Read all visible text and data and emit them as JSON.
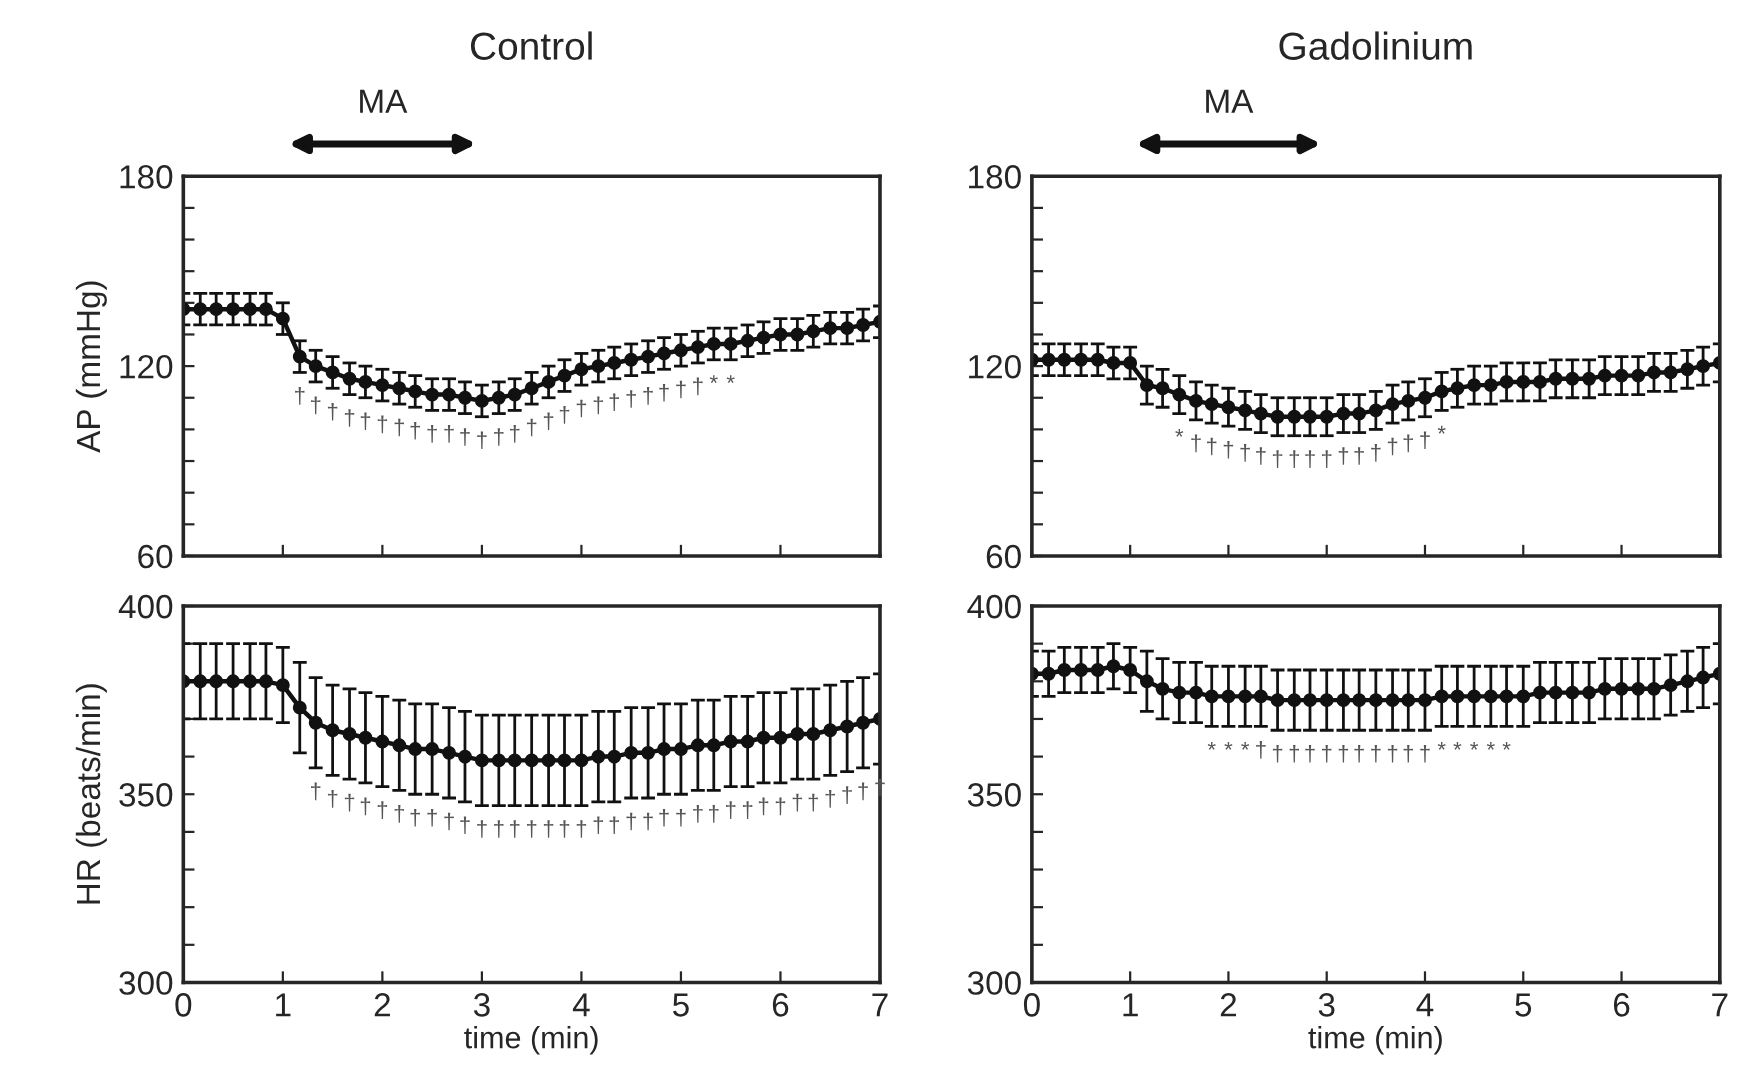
{
  "chart_data": [
    {
      "type": "line",
      "title": "Control",
      "ylabel": "AP (mmHg)",
      "tick_labels": "y",
      "marker": "circle",
      "grid": false,
      "x": [
        0,
        0.17,
        0.33,
        0.5,
        0.67,
        0.83,
        1,
        1.17,
        1.33,
        1.5,
        1.67,
        1.83,
        2,
        2.17,
        2.33,
        2.5,
        2.67,
        2.83,
        3,
        3.17,
        3.33,
        3.5,
        3.67,
        3.83,
        4,
        4.17,
        4.33,
        4.5,
        4.67,
        4.83,
        5,
        5.17,
        5.33,
        5.5,
        5.67,
        5.83,
        6,
        6.17,
        6.33,
        6.5,
        6.67,
        6.83,
        7
      ],
      "series": [
        {
          "color": "#111111",
          "values": [
            138,
            138,
            138,
            138,
            138,
            138,
            135,
            123,
            120,
            118,
            116,
            115,
            114,
            113,
            112,
            111,
            111,
            110,
            109,
            110,
            111,
            113,
            115,
            117,
            119,
            120,
            121,
            122,
            123,
            124,
            125,
            126,
            127,
            127,
            128,
            129,
            130,
            130,
            131,
            132,
            132,
            133,
            134
          ],
          "errors": [
            5,
            5,
            5,
            5,
            5,
            5,
            5,
            5,
            5,
            5,
            5,
            5,
            5,
            5,
            5,
            5,
            5,
            5,
            5,
            5,
            5,
            5,
            5,
            5,
            5,
            5,
            5,
            5,
            5,
            5,
            5,
            5,
            5,
            5,
            5,
            5,
            5,
            5,
            5,
            5,
            5,
            5,
            5
          ]
        }
      ],
      "xlim": [
        0,
        7
      ],
      "xticks": [
        0,
        1,
        2,
        3,
        4,
        5,
        6,
        7
      ],
      "ylim": [
        60,
        180
      ],
      "yticks": [
        60,
        {
          "value": 70,
          "label": null
        },
        {
          "value": 80,
          "label": null
        },
        {
          "value": 90,
          "label": null
        },
        {
          "value": 100,
          "label": null
        },
        {
          "value": 110,
          "label": null
        },
        120,
        {
          "value": 130,
          "label": null
        },
        {
          "value": 140,
          "label": null
        },
        {
          "value": 150,
          "label": null
        },
        {
          "value": 160,
          "label": null
        },
        {
          "value": 170,
          "label": null
        },
        180
      ],
      "annotations": [
        "MA",
        {
          "text": "†",
          "x": 1.17,
          "y": 123
        },
        {
          "text": "†",
          "x": 1.33,
          "y": 120
        },
        {
          "text": "†",
          "x": 1.5,
          "y": 118
        },
        {
          "text": "†",
          "x": 1.67,
          "y": 116
        },
        {
          "text": "†",
          "x": 1.83,
          "y": 115
        },
        {
          "text": "†",
          "x": 2,
          "y": 114
        },
        {
          "text": "†",
          "x": 2.17,
          "y": 113
        },
        {
          "text": "†",
          "x": 2.33,
          "y": 112
        },
        {
          "text": "†",
          "x": 2.5,
          "y": 111
        },
        {
          "text": "†",
          "x": 2.67,
          "y": 111
        },
        {
          "text": "†",
          "x": 2.83,
          "y": 110
        },
        {
          "text": "†",
          "x": 3,
          "y": 109
        },
        {
          "text": "†",
          "x": 3.17,
          "y": 110
        },
        {
          "text": "†",
          "x": 3.33,
          "y": 111
        },
        {
          "text": "†",
          "x": 3.5,
          "y": 113
        },
        {
          "text": "†",
          "x": 3.67,
          "y": 115
        },
        {
          "text": "†",
          "x": 3.83,
          "y": 117
        },
        {
          "text": "†",
          "x": 4,
          "y": 119
        },
        {
          "text": "†",
          "x": 4.17,
          "y": 120
        },
        {
          "text": "†",
          "x": 4.33,
          "y": 121
        },
        {
          "text": "†",
          "x": 4.5,
          "y": 122
        },
        {
          "text": "†",
          "x": 4.67,
          "y": 123
        },
        {
          "text": "†",
          "x": 4.83,
          "y": 124
        },
        {
          "text": "†",
          "x": 5,
          "y": 125
        },
        {
          "text": "†",
          "x": 5.17,
          "y": 126
        },
        {
          "text": "*",
          "x": 5.33,
          "y": 127
        },
        {
          "text": "*",
          "x": 5.5,
          "y": 127
        }
      ]
    },
    {
      "type": "line",
      "title": "Gadolinium",
      "tick_labels": "y",
      "marker": "circle",
      "grid": false,
      "x": [
        0,
        0.17,
        0.33,
        0.5,
        0.67,
        0.83,
        1,
        1.17,
        1.33,
        1.5,
        1.67,
        1.83,
        2,
        2.17,
        2.33,
        2.5,
        2.67,
        2.83,
        3,
        3.17,
        3.33,
        3.5,
        3.67,
        3.83,
        4,
        4.17,
        4.33,
        4.5,
        4.67,
        4.83,
        5,
        5.17,
        5.33,
        5.5,
        5.67,
        5.83,
        6,
        6.17,
        6.33,
        6.5,
        6.67,
        6.83,
        7
      ],
      "series": [
        {
          "color": "#111111",
          "values": [
            122,
            122,
            122,
            122,
            122,
            121,
            121,
            114,
            113,
            111,
            109,
            108,
            107,
            106,
            105,
            104,
            104,
            104,
            104,
            105,
            105,
            106,
            108,
            109,
            110,
            112,
            113,
            114,
            114,
            115,
            115,
            115,
            116,
            116,
            116,
            117,
            117,
            117,
            118,
            118,
            119,
            120,
            121
          ],
          "errors": [
            5,
            5,
            5,
            5,
            5,
            5,
            5,
            6,
            6,
            6,
            6,
            6,
            6,
            6,
            6,
            6,
            6,
            6,
            6,
            6,
            6,
            6,
            6,
            6,
            6,
            6,
            6,
            6,
            6,
            6,
            6,
            6,
            6,
            6,
            6,
            6,
            6,
            6,
            6,
            6,
            6,
            6,
            6
          ]
        }
      ],
      "xlim": [
        0,
        7
      ],
      "xticks": [
        0,
        1,
        2,
        3,
        4,
        5,
        6,
        7
      ],
      "ylim": [
        60,
        180
      ],
      "yticks": [
        60,
        {
          "value": 70,
          "label": null
        },
        {
          "value": 80,
          "label": null
        },
        {
          "value": 90,
          "label": null
        },
        {
          "value": 100,
          "label": null
        },
        {
          "value": 110,
          "label": null
        },
        120,
        {
          "value": 130,
          "label": null
        },
        {
          "value": 140,
          "label": null
        },
        {
          "value": 150,
          "label": null
        },
        {
          "value": 160,
          "label": null
        },
        {
          "value": 170,
          "label": null
        },
        180
      ],
      "annotations": [
        "MA",
        {
          "text": "*",
          "x": 1.5,
          "y": 111
        },
        {
          "text": "†",
          "x": 1.67,
          "y": 109
        },
        {
          "text": "†",
          "x": 1.83,
          "y": 108
        },
        {
          "text": "†",
          "x": 2,
          "y": 107
        },
        {
          "text": "†",
          "x": 2.17,
          "y": 106
        },
        {
          "text": "†",
          "x": 2.33,
          "y": 105
        },
        {
          "text": "†",
          "x": 2.5,
          "y": 104
        },
        {
          "text": "†",
          "x": 2.67,
          "y": 104
        },
        {
          "text": "†",
          "x": 2.83,
          "y": 104
        },
        {
          "text": "†",
          "x": 3,
          "y": 104
        },
        {
          "text": "†",
          "x": 3.17,
          "y": 105
        },
        {
          "text": "†",
          "x": 3.33,
          "y": 105
        },
        {
          "text": "†",
          "x": 3.5,
          "y": 106
        },
        {
          "text": "†",
          "x": 3.67,
          "y": 108
        },
        {
          "text": "†",
          "x": 3.83,
          "y": 109
        },
        {
          "text": "†",
          "x": 4,
          "y": 110
        },
        {
          "text": "*",
          "x": 4.17,
          "y": 112
        }
      ]
    },
    {
      "type": "line",
      "xlabel": "time (min)",
      "ylabel": "HR (beats/min)",
      "marker": "circle",
      "grid": false,
      "x": [
        0,
        0.17,
        0.33,
        0.5,
        0.67,
        0.83,
        1,
        1.17,
        1.33,
        1.5,
        1.67,
        1.83,
        2,
        2.17,
        2.33,
        2.5,
        2.67,
        2.83,
        3,
        3.17,
        3.33,
        3.5,
        3.67,
        3.83,
        4,
        4.17,
        4.33,
        4.5,
        4.67,
        4.83,
        5,
        5.17,
        5.33,
        5.5,
        5.67,
        5.83,
        6,
        6.17,
        6.33,
        6.5,
        6.67,
        6.83,
        7
      ],
      "series": [
        {
          "color": "#111111",
          "values": [
            380,
            380,
            380,
            380,
            380,
            380,
            379,
            373,
            369,
            367,
            366,
            365,
            364,
            363,
            362,
            362,
            361,
            360,
            359,
            359,
            359,
            359,
            359,
            359,
            359,
            360,
            360,
            361,
            361,
            362,
            362,
            363,
            363,
            364,
            364,
            365,
            365,
            366,
            366,
            367,
            368,
            369,
            370
          ],
          "errors": [
            10,
            10,
            10,
            10,
            10,
            10,
            10,
            12,
            12,
            12,
            12,
            12,
            12,
            12,
            12,
            12,
            12,
            12,
            12,
            12,
            12,
            12,
            12,
            12,
            12,
            12,
            12,
            12,
            12,
            12,
            12,
            12,
            12,
            12,
            12,
            12,
            12,
            12,
            12,
            12,
            12,
            12,
            12
          ]
        }
      ],
      "xlim": [
        0,
        7
      ],
      "xticks": [
        0,
        1,
        2,
        3,
        4,
        5,
        6,
        7
      ],
      "ylim": [
        300,
        400
      ],
      "yticks": [
        300,
        {
          "value": 310,
          "label": null
        },
        {
          "value": 320,
          "label": null
        },
        {
          "value": 330,
          "label": null
        },
        {
          "value": 340,
          "label": null
        },
        350,
        {
          "value": 360,
          "label": null
        },
        {
          "value": 370,
          "label": null
        },
        {
          "value": 380,
          "label": null
        },
        {
          "value": 390,
          "label": null
        },
        400
      ],
      "annotations": [
        {
          "text": "†",
          "x": 1.33,
          "y": 369
        },
        {
          "text": "†",
          "x": 1.5,
          "y": 367
        },
        {
          "text": "†",
          "x": 1.67,
          "y": 366
        },
        {
          "text": "†",
          "x": 1.83,
          "y": 365
        },
        {
          "text": "†",
          "x": 2,
          "y": 364
        },
        {
          "text": "†",
          "x": 2.17,
          "y": 363
        },
        {
          "text": "†",
          "x": 2.33,
          "y": 362
        },
        {
          "text": "†",
          "x": 2.5,
          "y": 362
        },
        {
          "text": "†",
          "x": 2.67,
          "y": 361
        },
        {
          "text": "†",
          "x": 2.83,
          "y": 360
        },
        {
          "text": "†",
          "x": 3,
          "y": 359
        },
        {
          "text": "†",
          "x": 3.17,
          "y": 359
        },
        {
          "text": "†",
          "x": 3.33,
          "y": 359
        },
        {
          "text": "†",
          "x": 3.5,
          "y": 359
        },
        {
          "text": "†",
          "x": 3.67,
          "y": 359
        },
        {
          "text": "†",
          "x": 3.83,
          "y": 359
        },
        {
          "text": "†",
          "x": 4,
          "y": 359
        },
        {
          "text": "†",
          "x": 4.17,
          "y": 360
        },
        {
          "text": "†",
          "x": 4.33,
          "y": 360
        },
        {
          "text": "†",
          "x": 4.5,
          "y": 361
        },
        {
          "text": "†",
          "x": 4.67,
          "y": 361
        },
        {
          "text": "†",
          "x": 4.83,
          "y": 362
        },
        {
          "text": "†",
          "x": 5,
          "y": 362
        },
        {
          "text": "†",
          "x": 5.17,
          "y": 363
        },
        {
          "text": "†",
          "x": 5.33,
          "y": 363
        },
        {
          "text": "†",
          "x": 5.5,
          "y": 364
        },
        {
          "text": "†",
          "x": 5.67,
          "y": 364
        },
        {
          "text": "†",
          "x": 5.83,
          "y": 365
        },
        {
          "text": "†",
          "x": 6,
          "y": 365
        },
        {
          "text": "†",
          "x": 6.17,
          "y": 366
        },
        {
          "text": "†",
          "x": 6.33,
          "y": 366
        },
        {
          "text": "†",
          "x": 6.5,
          "y": 367
        },
        {
          "text": "†",
          "x": 6.67,
          "y": 368
        },
        {
          "text": "†",
          "x": 6.83,
          "y": 369
        },
        {
          "text": "†",
          "x": 7,
          "y": 370
        }
      ]
    },
    {
      "type": "line",
      "xlabel": "time (min)",
      "marker": "circle",
      "grid": false,
      "x": [
        0,
        0.17,
        0.33,
        0.5,
        0.67,
        0.83,
        1,
        1.17,
        1.33,
        1.5,
        1.67,
        1.83,
        2,
        2.17,
        2.33,
        2.5,
        2.67,
        2.83,
        3,
        3.17,
        3.33,
        3.5,
        3.67,
        3.83,
        4,
        4.17,
        4.33,
        4.5,
        4.67,
        4.83,
        5,
        5.17,
        5.33,
        5.5,
        5.67,
        5.83,
        6,
        6.17,
        6.33,
        6.5,
        6.67,
        6.83,
        7
      ],
      "series": [
        {
          "color": "#111111",
          "values": [
            382,
            382,
            383,
            383,
            383,
            384,
            383,
            380,
            378,
            377,
            377,
            376,
            376,
            376,
            376,
            375,
            375,
            375,
            375,
            375,
            375,
            375,
            375,
            375,
            375,
            376,
            376,
            376,
            376,
            376,
            376,
            377,
            377,
            377,
            377,
            378,
            378,
            378,
            378,
            379,
            380,
            381,
            382
          ],
          "errors": [
            6,
            6,
            6,
            6,
            6,
            6,
            6,
            8,
            8,
            8,
            8,
            8,
            8,
            8,
            8,
            8,
            8,
            8,
            8,
            8,
            8,
            8,
            8,
            8,
            8,
            8,
            8,
            8,
            8,
            8,
            8,
            8,
            8,
            8,
            8,
            8,
            8,
            8,
            8,
            8,
            8,
            8,
            8
          ]
        }
      ],
      "xlim": [
        0,
        7
      ],
      "xticks": [
        0,
        1,
        2,
        3,
        4,
        5,
        6,
        7
      ],
      "ylim": [
        300,
        400
      ],
      "yticks": [
        300,
        {
          "value": 310,
          "label": null
        },
        {
          "value": 320,
          "label": null
        },
        {
          "value": 330,
          "label": null
        },
        {
          "value": 340,
          "label": null
        },
        350,
        {
          "value": 360,
          "label": null
        },
        {
          "value": 370,
          "label": null
        },
        {
          "value": 380,
          "label": null
        },
        {
          "value": 390,
          "label": null
        },
        400
      ],
      "annotations": [
        {
          "text": "*",
          "x": 1.83,
          "y": 376
        },
        {
          "text": "*",
          "x": 2,
          "y": 376
        },
        {
          "text": "*",
          "x": 2.17,
          "y": 376
        },
        {
          "text": "†",
          "x": 2.33,
          "y": 376
        },
        {
          "text": "†",
          "x": 2.5,
          "y": 375
        },
        {
          "text": "†",
          "x": 2.67,
          "y": 375
        },
        {
          "text": "†",
          "x": 2.83,
          "y": 375
        },
        {
          "text": "†",
          "x": 3,
          "y": 375
        },
        {
          "text": "†",
          "x": 3.17,
          "y": 375
        },
        {
          "text": "†",
          "x": 3.33,
          "y": 375
        },
        {
          "text": "†",
          "x": 3.5,
          "y": 375
        },
        {
          "text": "†",
          "x": 3.67,
          "y": 375
        },
        {
          "text": "†",
          "x": 3.83,
          "y": 375
        },
        {
          "text": "†",
          "x": 4,
          "y": 375
        },
        {
          "text": "*",
          "x": 4.17,
          "y": 376
        },
        {
          "text": "*",
          "x": 4.33,
          "y": 376
        },
        {
          "text": "*",
          "x": 4.5,
          "y": 376
        },
        {
          "text": "*",
          "x": 4.67,
          "y": 376
        },
        {
          "text": "*",
          "x": 4.83,
          "y": 376
        }
      ]
    }
  ]
}
